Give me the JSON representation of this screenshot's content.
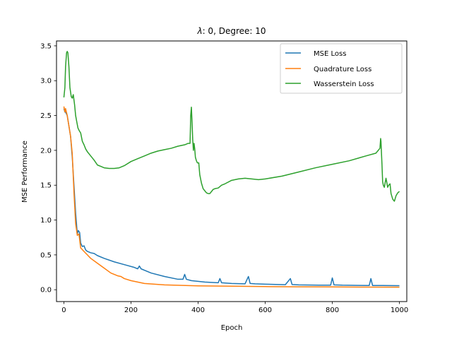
{
  "chart_data": {
    "type": "line",
    "title_symbol": "λ",
    "title_rest": ": 0, Degree: 10",
    "xlabel": "Epoch",
    "ylabel": "MSE Performance",
    "xlim": [
      -22,
      1022
    ],
    "ylim": [
      -0.17,
      3.57
    ],
    "xticks": [
      0,
      200,
      400,
      600,
      800,
      1000
    ],
    "yticks": [
      0.0,
      0.5,
      1.0,
      1.5,
      2.0,
      2.5,
      3.0,
      3.5
    ],
    "xtick_labels": [
      "0",
      "200",
      "400",
      "600",
      "800",
      "1000"
    ],
    "ytick_labels": [
      "0.0",
      "0.5",
      "1.0",
      "1.5",
      "2.0",
      "2.5",
      "3.0",
      "3.5"
    ],
    "grid": false,
    "legend_position": "top-right",
    "series": [
      {
        "name": "MSE Loss",
        "color": "#1f77b4",
        "x": [
          0,
          3,
          5,
          10,
          20,
          25,
          30,
          35,
          40,
          43,
          47,
          50,
          55,
          60,
          65,
          70,
          80,
          90,
          100,
          120,
          150,
          180,
          210,
          220,
          225,
          230,
          260,
          300,
          340,
          355,
          360,
          365,
          380,
          420,
          460,
          465,
          470,
          500,
          540,
          550,
          555,
          570,
          600,
          660,
          675,
          680,
          700,
          760,
          795,
          800,
          805,
          830,
          880,
          910,
          915,
          920,
          950,
          1000
        ],
        "y": [
          2.6,
          2.55,
          2.55,
          2.5,
          2.2,
          1.9,
          1.5,
          1.1,
          0.8,
          0.85,
          0.82,
          0.67,
          0.62,
          0.63,
          0.57,
          0.55,
          0.53,
          0.52,
          0.49,
          0.45,
          0.4,
          0.36,
          0.32,
          0.3,
          0.34,
          0.3,
          0.24,
          0.19,
          0.15,
          0.15,
          0.22,
          0.15,
          0.13,
          0.11,
          0.1,
          0.16,
          0.1,
          0.09,
          0.085,
          0.19,
          0.09,
          0.085,
          0.08,
          0.072,
          0.16,
          0.075,
          0.07,
          0.066,
          0.065,
          0.17,
          0.07,
          0.065,
          0.062,
          0.06,
          0.16,
          0.06,
          0.06,
          0.058
        ]
      },
      {
        "name": "Quadrature Loss",
        "color": "#ff7f0e",
        "x": [
          0,
          3,
          5,
          10,
          20,
          25,
          30,
          35,
          40,
          45,
          50,
          60,
          70,
          80,
          100,
          120,
          140,
          160,
          170,
          180,
          200,
          240,
          300,
          400,
          500,
          600,
          700,
          800,
          900,
          1000
        ],
        "y": [
          2.63,
          2.55,
          2.6,
          2.5,
          2.2,
          1.95,
          1.4,
          0.95,
          0.78,
          0.8,
          0.6,
          0.55,
          0.5,
          0.45,
          0.38,
          0.31,
          0.24,
          0.2,
          0.19,
          0.16,
          0.13,
          0.09,
          0.07,
          0.055,
          0.05,
          0.045,
          0.042,
          0.04,
          0.038,
          0.037
        ]
      },
      {
        "name": "Wasserstein Loss",
        "color": "#2ca02c",
        "x": [
          0,
          3,
          5,
          8,
          10,
          12,
          15,
          18,
          22,
          25,
          28,
          32,
          35,
          38,
          42,
          46,
          50,
          55,
          60,
          65,
          70,
          75,
          80,
          90,
          100,
          110,
          120,
          135,
          150,
          165,
          180,
          200,
          220,
          240,
          260,
          280,
          300,
          320,
          340,
          360,
          370,
          376,
          378,
          380,
          382,
          384,
          386,
          388,
          390,
          392,
          395,
          398,
          402,
          405,
          410,
          415,
          420,
          425,
          430,
          435,
          440,
          445,
          450,
          460,
          470,
          480,
          500,
          520,
          540,
          560,
          580,
          600,
          650,
          700,
          750,
          800,
          850,
          900,
          930,
          942,
          943,
          944,
          945,
          948,
          950,
          952,
          955,
          958,
          960,
          962,
          965,
          968,
          972,
          975,
          980,
          985,
          990,
          995,
          1000
        ],
        "y": [
          2.76,
          2.9,
          3.2,
          3.4,
          3.42,
          3.4,
          3.2,
          2.9,
          2.77,
          2.75,
          2.8,
          2.65,
          2.5,
          2.42,
          2.32,
          2.28,
          2.25,
          2.13,
          2.08,
          2.02,
          1.98,
          1.95,
          1.92,
          1.86,
          1.79,
          1.77,
          1.75,
          1.74,
          1.74,
          1.75,
          1.78,
          1.84,
          1.88,
          1.92,
          1.96,
          1.99,
          2.01,
          2.03,
          2.06,
          2.08,
          2.1,
          2.1,
          2.5,
          2.62,
          2.4,
          2.15,
          2.0,
          2.1,
          2.02,
          1.9,
          1.85,
          1.82,
          1.82,
          1.65,
          1.53,
          1.45,
          1.42,
          1.39,
          1.38,
          1.38,
          1.41,
          1.44,
          1.45,
          1.46,
          1.5,
          1.52,
          1.57,
          1.59,
          1.6,
          1.59,
          1.58,
          1.59,
          1.63,
          1.69,
          1.75,
          1.8,
          1.85,
          1.92,
          1.96,
          2.03,
          2.1,
          2.17,
          2.13,
          1.8,
          1.55,
          1.5,
          1.47,
          1.55,
          1.6,
          1.55,
          1.47,
          1.5,
          1.52,
          1.38,
          1.3,
          1.27,
          1.35,
          1.39,
          1.41
        ]
      }
    ]
  }
}
